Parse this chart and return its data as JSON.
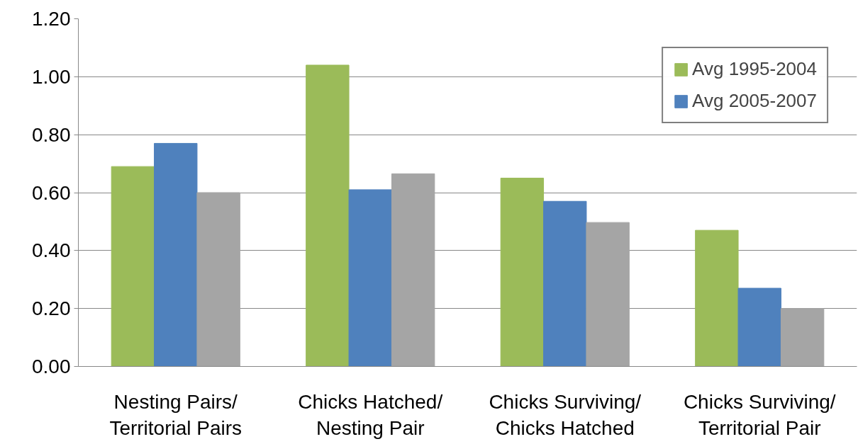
{
  "chart_data": {
    "type": "bar",
    "categories": [
      "Nesting Pairs/ Territorial Pairs",
      "Chicks Hatched/ Nesting Pair",
      "Chicks Surviving/ Chicks Hatched",
      "Chicks Surviving/ Territorial Pair"
    ],
    "series": [
      {
        "name": "Avg 1995-2004",
        "color": "#9bbb59",
        "values": [
          0.69,
          1.04,
          0.65,
          0.47
        ]
      },
      {
        "name": "Avg 2005-2007",
        "color": "#4f81bd",
        "values": [
          0.77,
          0.61,
          0.57,
          0.27
        ]
      },
      {
        "color": "#a5a5a5",
        "values": [
          0.6,
          0.665,
          0.497,
          0.2
        ]
      }
    ],
    "ylim": [
      0,
      1.2
    ],
    "yticks": [
      {
        "value": 0,
        "label": "0.00"
      },
      {
        "value": 0.2,
        "label": "0.20"
      },
      {
        "value": 0.4,
        "label": "0.40"
      },
      {
        "value": 0.6,
        "label": "0.60"
      },
      {
        "value": 0.8,
        "label": "0.80"
      },
      {
        "value": 1.0,
        "label": "1.00"
      },
      {
        "value": 1.2,
        "label": "1.20"
      }
    ],
    "grid": "y",
    "legend": "top right"
  }
}
